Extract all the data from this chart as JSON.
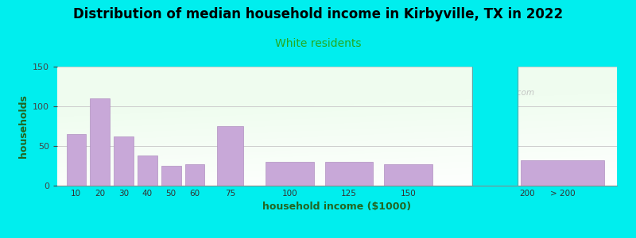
{
  "title": "Distribution of median household income in Kirbyville, TX in 2022",
  "subtitle": "White residents",
  "xlabel": "household income ($1000)",
  "ylabel": "households",
  "title_fontsize": 12,
  "subtitle_fontsize": 10,
  "subtitle_color": "#22aa22",
  "ylabel_color": "#226622",
  "xlabel_color": "#226622",
  "background_outer": "#00eeee",
  "bar_color": "#c8a8d8",
  "bar_edge_color": "#b090c0",
  "ylim": [
    0,
    150
  ],
  "yticks": [
    0,
    50,
    100,
    150
  ],
  "categories": [
    "10",
    "20",
    "30",
    "40",
    "50",
    "60",
    "75",
    "100",
    "125",
    "150",
    "200",
    "> 200"
  ],
  "values": [
    65,
    110,
    62,
    38,
    25,
    27,
    75,
    30,
    30,
    27,
    0,
    32
  ],
  "watermark": "City-Data.com"
}
